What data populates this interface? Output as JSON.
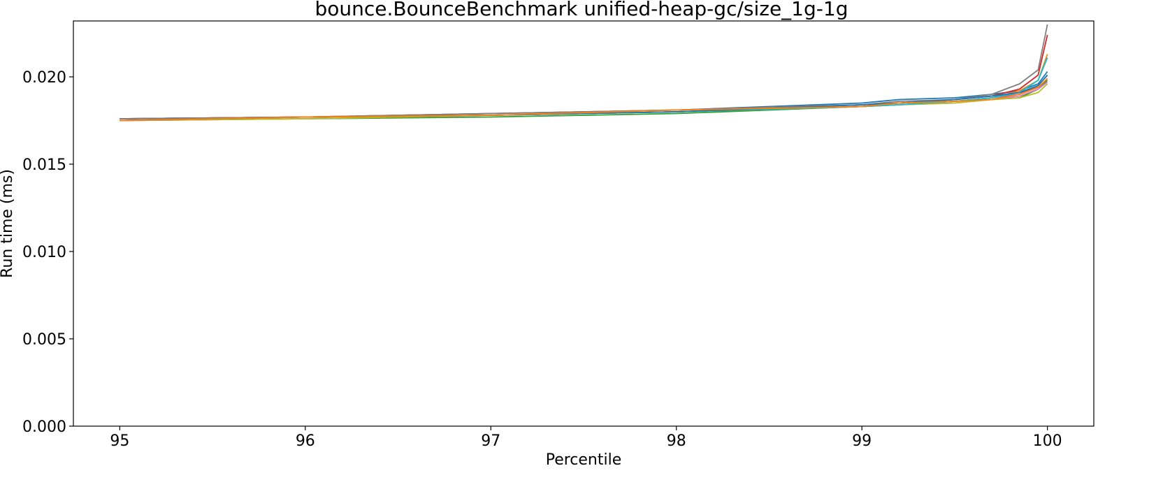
{
  "chart_data": {
    "type": "line",
    "title": "bounce.BounceBenchmark unified-heap-gc/size_1g-1g",
    "xlabel": "Percentile",
    "ylabel": "Run time (ms)",
    "xlim": [
      94.75,
      100.25
    ],
    "ylim": [
      0.0,
      0.0232
    ],
    "xticks": [
      "95",
      "96",
      "97",
      "98",
      "99",
      "100"
    ],
    "xtick_values": [
      95,
      96,
      97,
      98,
      99,
      100
    ],
    "yticks": [
      "0.000",
      "0.005",
      "0.010",
      "0.015",
      "0.020"
    ],
    "ytick_values": [
      0.0,
      0.005,
      0.01,
      0.015,
      0.02
    ],
    "grid": false,
    "legend": "none",
    "series": [
      {
        "color": "#1f77b4",
        "x": [
          95,
          96,
          97,
          98,
          99,
          99.2,
          99.5,
          99.7,
          99.85,
          99.95,
          100
        ],
        "y": [
          0.0176,
          0.0177,
          0.0179,
          0.0181,
          0.0185,
          0.0187,
          0.0188,
          0.019,
          0.0192,
          0.0196,
          0.0203
        ]
      },
      {
        "color": "#ff7f0e",
        "x": [
          95,
          96,
          97,
          98,
          99,
          99.2,
          99.5,
          99.7,
          99.85,
          99.95,
          100
        ],
        "y": [
          0.0175,
          0.0177,
          0.0179,
          0.0181,
          0.0184,
          0.0185,
          0.0186,
          0.0188,
          0.0192,
          0.0198,
          0.0213
        ]
      },
      {
        "color": "#2ca02c",
        "x": [
          95,
          96,
          97,
          98,
          99,
          99.2,
          99.5,
          99.7,
          99.85,
          99.95,
          100
        ],
        "y": [
          0.0175,
          0.0176,
          0.0177,
          0.0179,
          0.0183,
          0.0184,
          0.0186,
          0.0187,
          0.0188,
          0.0193,
          0.0198
        ]
      },
      {
        "color": "#d62728",
        "x": [
          95,
          96,
          97,
          98,
          99,
          99.2,
          99.5,
          99.7,
          99.85,
          99.95,
          100
        ],
        "y": [
          0.0176,
          0.0177,
          0.0178,
          0.018,
          0.0184,
          0.0185,
          0.0187,
          0.0189,
          0.0193,
          0.0201,
          0.0224
        ]
      },
      {
        "color": "#9467bd",
        "x": [
          95,
          96,
          97,
          98,
          99,
          99.2,
          99.5,
          99.7,
          99.85,
          99.95,
          100
        ],
        "y": [
          0.0175,
          0.0177,
          0.0178,
          0.018,
          0.0183,
          0.0184,
          0.0186,
          0.0188,
          0.019,
          0.0195,
          0.0201
        ]
      },
      {
        "color": "#8c564b",
        "x": [
          95,
          96,
          97,
          98,
          99,
          99.2,
          99.5,
          99.7,
          99.85,
          99.95,
          100
        ],
        "y": [
          0.0176,
          0.0177,
          0.0178,
          0.018,
          0.0183,
          0.0185,
          0.0187,
          0.0189,
          0.0191,
          0.0194,
          0.0199
        ]
      },
      {
        "color": "#e377c2",
        "x": [
          95,
          96,
          97,
          98,
          99,
          99.2,
          99.5,
          99.7,
          99.85,
          99.95,
          100
        ],
        "y": [
          0.0175,
          0.0176,
          0.0178,
          0.018,
          0.0183,
          0.0184,
          0.0185,
          0.0187,
          0.0189,
          0.0193,
          0.0197
        ]
      },
      {
        "color": "#7f7f7f",
        "x": [
          95,
          96,
          97,
          98,
          99,
          99.2,
          99.5,
          99.7,
          99.85,
          99.95,
          100
        ],
        "y": [
          0.0176,
          0.0177,
          0.0179,
          0.0181,
          0.0184,
          0.0186,
          0.0187,
          0.019,
          0.0196,
          0.0204,
          0.023
        ]
      },
      {
        "color": "#bcbd22",
        "x": [
          95,
          96,
          97,
          98,
          99,
          99.2,
          99.5,
          99.7,
          99.85,
          99.95,
          100
        ],
        "y": [
          0.0175,
          0.0176,
          0.0178,
          0.018,
          0.0183,
          0.0184,
          0.0185,
          0.0187,
          0.0188,
          0.0191,
          0.0196
        ]
      },
      {
        "color": "#17becf",
        "x": [
          95,
          96,
          97,
          98,
          99,
          99.2,
          99.5,
          99.7,
          99.85,
          99.95,
          100
        ],
        "y": [
          0.0175,
          0.0177,
          0.0178,
          0.018,
          0.0183,
          0.0184,
          0.0186,
          0.0188,
          0.0191,
          0.0198,
          0.0211
        ]
      },
      {
        "color": "#1f77b4",
        "x": [
          95,
          96,
          97,
          98,
          99,
          99.2,
          99.5,
          99.7,
          99.85,
          99.95,
          100
        ],
        "y": [
          0.0175,
          0.0177,
          0.0178,
          0.018,
          0.0184,
          0.0185,
          0.0187,
          0.0189,
          0.0191,
          0.0195,
          0.0201
        ]
      },
      {
        "color": "#ff7f0e",
        "x": [
          95,
          96,
          97,
          98,
          99,
          99.2,
          99.5,
          99.7,
          99.85,
          99.95,
          100
        ],
        "y": [
          0.0175,
          0.0177,
          0.0178,
          0.0181,
          0.0183,
          0.0185,
          0.0186,
          0.0187,
          0.019,
          0.0194,
          0.0199
        ]
      }
    ]
  }
}
